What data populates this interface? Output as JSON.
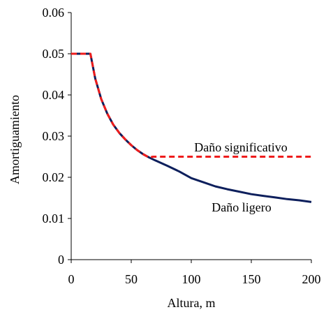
{
  "chart_data": {
    "type": "line",
    "xlabel": "Altura,  m",
    "ylabel": "Amortiguamiento",
    "xlim": [
      0,
      200
    ],
    "ylim": [
      0,
      0.06
    ],
    "xticks": [
      "0",
      "50",
      "100",
      "150",
      "200"
    ],
    "yticks": [
      "0",
      "0.01",
      "0.02",
      "0.03",
      "0.04",
      "0.05",
      "0.06"
    ],
    "grid": false,
    "series": [
      {
        "name": "Daño ligero",
        "color": "#0d1f5c",
        "style": "solid",
        "x": [
          0,
          16,
          20,
          25,
          30,
          35,
          40,
          45,
          50,
          55,
          60,
          65,
          70,
          80,
          90,
          100,
          110,
          120,
          130,
          140,
          150,
          160,
          170,
          180,
          190,
          200
        ],
        "y": [
          0.05,
          0.05,
          0.044,
          0.039,
          0.0355,
          0.0328,
          0.0308,
          0.0292,
          0.0278,
          0.0266,
          0.0256,
          0.0248,
          0.0241,
          0.0228,
          0.0214,
          0.0198,
          0.0188,
          0.0178,
          0.0171,
          0.0165,
          0.0159,
          0.0155,
          0.0151,
          0.0147,
          0.0144,
          0.014
        ]
      },
      {
        "name": "Daño significativo",
        "color": "#ee1c1c",
        "style": "dashed",
        "x": [
          0,
          16,
          20,
          25,
          30,
          35,
          40,
          45,
          50,
          55,
          60,
          65,
          68,
          100,
          150,
          200
        ],
        "y": [
          0.05,
          0.05,
          0.044,
          0.039,
          0.0355,
          0.0328,
          0.0308,
          0.0292,
          0.0278,
          0.0266,
          0.0256,
          0.0248,
          0.025,
          0.025,
          0.025,
          0.025
        ]
      }
    ]
  }
}
